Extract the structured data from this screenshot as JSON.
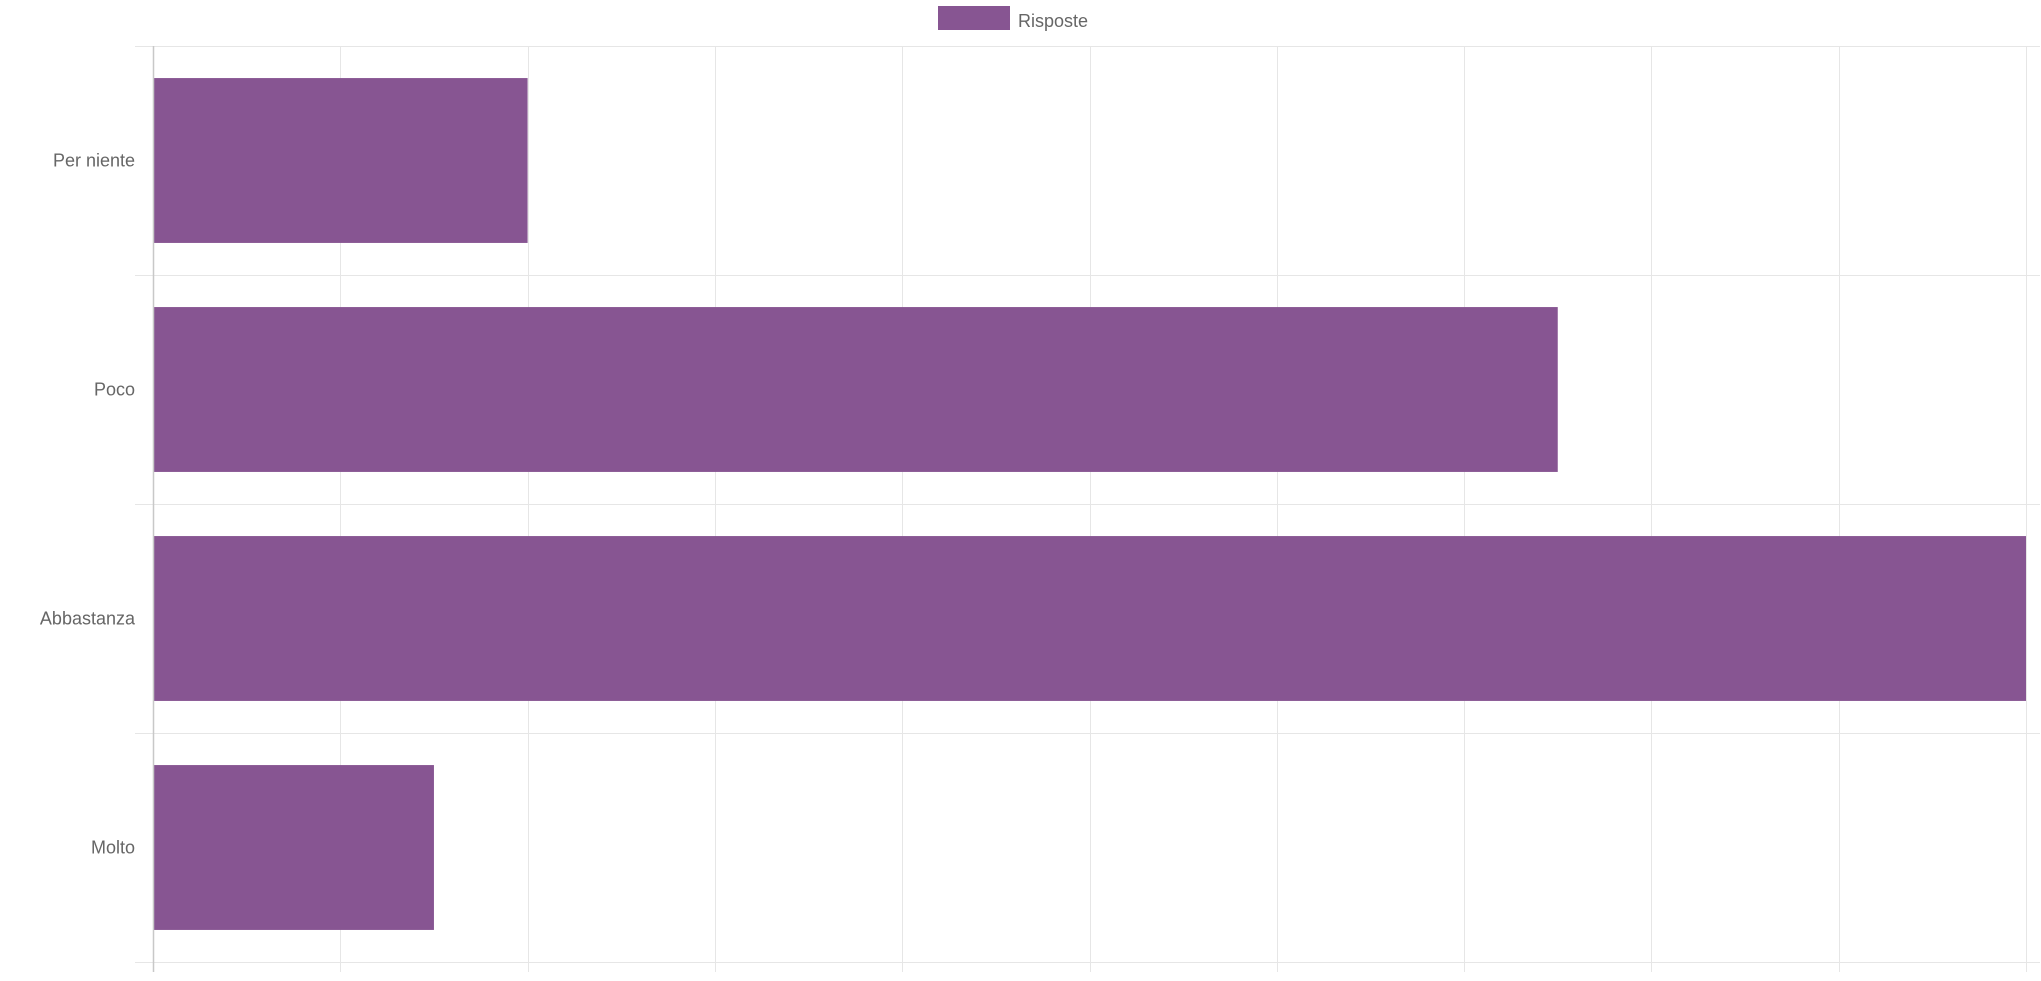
{
  "chart_data": {
    "type": "bar",
    "orientation": "horizontal",
    "categories": [
      "Per niente",
      "Poco",
      "Abbastanza",
      "Molto"
    ],
    "series": [
      {
        "name": "Risposte",
        "values": [
          2,
          7.5,
          10,
          1.5
        ]
      }
    ],
    "title": "",
    "xlabel": "",
    "ylabel": "",
    "xlim": [
      0,
      10
    ],
    "x_gridlines": 10,
    "grid": true,
    "legend": {
      "position": "top",
      "entries": [
        "Risposte"
      ]
    },
    "colors": {
      "bar": "#875592",
      "grid": "#e6e6e6",
      "axis": "#c8c8c8",
      "label": "#666666"
    }
  }
}
